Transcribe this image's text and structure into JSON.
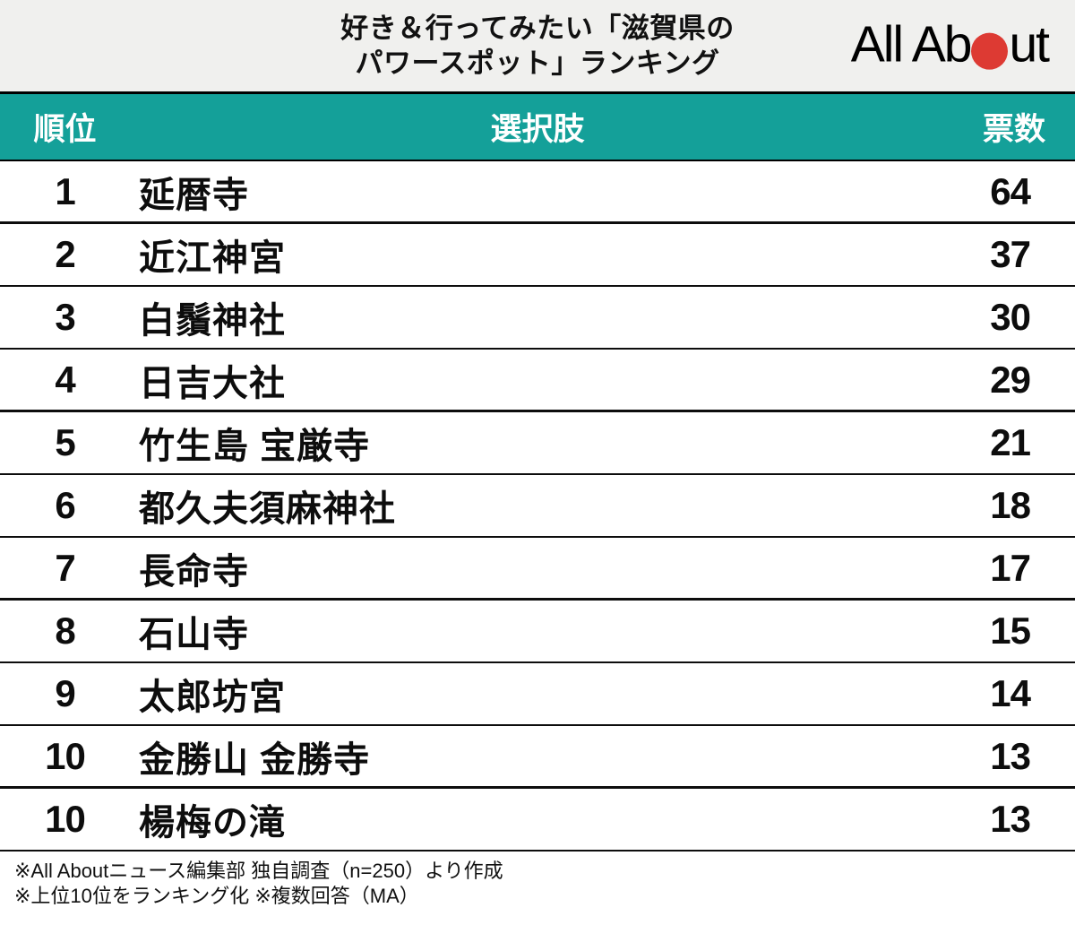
{
  "title": {
    "line1": "好き＆行ってみたい「滋賀県の",
    "line2": "パワースポット」ランキング"
  },
  "logo": {
    "text_before": "All Ab",
    "text_after": "ut",
    "alt": "All About"
  },
  "table": {
    "header": {
      "rank": "順位",
      "choice": "選択肢",
      "votes": "票数"
    },
    "rows": [
      {
        "rank": "1",
        "name": "延暦寺",
        "votes": "64"
      },
      {
        "rank": "2",
        "name": "近江神宮",
        "votes": "37"
      },
      {
        "rank": "3",
        "name": "白鬚神社",
        "votes": "30"
      },
      {
        "rank": "4",
        "name": "日吉大社",
        "votes": "29"
      },
      {
        "rank": "5",
        "name": "竹生島 宝厳寺",
        "votes": "21"
      },
      {
        "rank": "6",
        "name": "都久夫須麻神社",
        "votes": "18"
      },
      {
        "rank": "7",
        "name": "長命寺",
        "votes": "17"
      },
      {
        "rank": "8",
        "name": "石山寺",
        "votes": "15"
      },
      {
        "rank": "9",
        "name": "太郎坊宮",
        "votes": "14"
      },
      {
        "rank": "10",
        "name": "金勝山 金勝寺",
        "votes": "13"
      },
      {
        "rank": "10",
        "name": "楊梅の滝",
        "votes": "13"
      }
    ]
  },
  "footer": {
    "line1": "※All Aboutニュース編集部 独自調査（n=250）より作成",
    "line2": "※上位10位をランキング化 ※複数回答（MA）"
  },
  "colors": {
    "teal": "#14a099",
    "logo_red": "#dd3a33",
    "title_bg": "#f0f0ee",
    "line": "#0d0d0d"
  },
  "chart_data": {
    "type": "table",
    "title": "好き＆行ってみたい「滋賀県のパワースポット」ランキング",
    "columns": [
      "順位",
      "選択肢",
      "票数"
    ],
    "ranks": [
      1,
      2,
      3,
      4,
      5,
      6,
      7,
      8,
      9,
      10,
      10
    ],
    "categories": [
      "延暦寺",
      "近江神宮",
      "白鬚神社",
      "日吉大社",
      "竹生島 宝厳寺",
      "都久夫須麻神社",
      "長命寺",
      "石山寺",
      "太郎坊宮",
      "金勝山 金勝寺",
      "楊梅の滝"
    ],
    "values": [
      64,
      37,
      30,
      29,
      21,
      18,
      17,
      15,
      14,
      13,
      13
    ],
    "value_label": "票数",
    "source_note": "All Aboutニュース編集部 独自調査（n=250）より作成、上位10位をランキング化、複数回答（MA）"
  }
}
